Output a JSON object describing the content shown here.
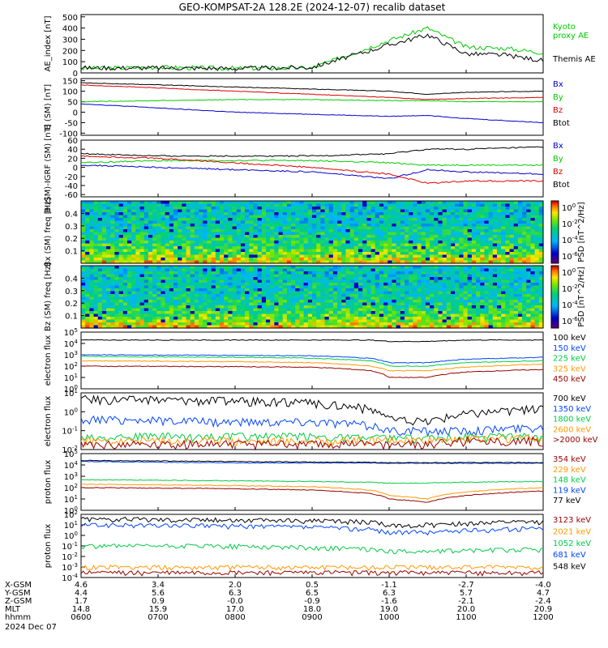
{
  "title": "GEO-KOMPSAT-2A 128.2E (2024-12-07) recalib dataset",
  "date_label": "2024 Dec 07",
  "colors": {
    "black": "#000000",
    "green": "#00cc00",
    "red": "#dd0000",
    "blue": "#0000cc",
    "darkred": "#990000",
    "orange": "#ff9900",
    "blue2": "#0044ff",
    "green2": "#00cc44"
  },
  "ephemeris": {
    "rows": [
      {
        "label": "X-GSM",
        "values": [
          "4.6",
          "3.4",
          "2.0",
          "0.5",
          "-1.1",
          "-2.7",
          "-4.0"
        ]
      },
      {
        "label": "Y-GSM",
        "values": [
          "4.4",
          "5.6",
          "6.3",
          "6.5",
          "6.3",
          "5.7",
          "4.7"
        ]
      },
      {
        "label": "Z-GSM",
        "values": [
          "1.7",
          "0.9",
          "-0.0",
          "-0.9",
          "-1.6",
          "-2.1",
          "-2.4"
        ]
      },
      {
        "label": "MLT",
        "values": [
          "14.8",
          "15.9",
          "17.0",
          "18.0",
          "19.0",
          "20.0",
          "20.9"
        ]
      },
      {
        "label": "hhmm",
        "values": [
          "0600",
          "0700",
          "0800",
          "0900",
          "1000",
          "1100",
          "1200"
        ]
      }
    ]
  },
  "chart_data": [
    {
      "type": "line",
      "id": "ae",
      "ylabel": "AE_index [nT]",
      "ylim": [
        0,
        520
      ],
      "yticks": [
        "0",
        "100",
        "200",
        "300",
        "400",
        "500"
      ],
      "x": [
        "06:00",
        "07:00",
        "08:00",
        "09:00",
        "10:00",
        "10:30",
        "11:00",
        "11:30",
        "12:00"
      ],
      "series": [
        {
          "name": "Kyoto proxy AE",
          "color": "#00cc00",
          "values": [
            40,
            50,
            40,
            45,
            290,
            400,
            230,
            220,
            180
          ]
        },
        {
          "name": "Themis AE",
          "color": "#000000",
          "values": [
            45,
            45,
            40,
            50,
            250,
            340,
            170,
            160,
            110
          ]
        }
      ]
    },
    {
      "type": "line",
      "id": "bsm",
      "ylabel": "B (SM) [nT]",
      "ylim": [
        -110,
        160
      ],
      "yticks": [
        "-100",
        "-50",
        "0",
        "50",
        "100",
        "150"
      ],
      "x": [
        "06:00",
        "07:00",
        "08:00",
        "09:00",
        "10:00",
        "10:30",
        "11:00",
        "12:00"
      ],
      "series": [
        {
          "name": "Bx",
          "color": "#0000cc",
          "values": [
            40,
            20,
            0,
            -10,
            -20,
            -15,
            -30,
            -50
          ]
        },
        {
          "name": "By",
          "color": "#00cc00",
          "values": [
            50,
            55,
            60,
            60,
            55,
            55,
            50,
            50
          ]
        },
        {
          "name": "Bz",
          "color": "#dd0000",
          "values": [
            130,
            115,
            100,
            85,
            70,
            60,
            65,
            70
          ]
        },
        {
          "name": "Btot",
          "color": "#000000",
          "values": [
            140,
            130,
            120,
            110,
            100,
            85,
            95,
            100
          ]
        }
      ]
    },
    {
      "type": "line",
      "id": "bdiff",
      "ylabel": "B (SM)-IGRF (SM) [nT]",
      "ylim": [
        -65,
        60
      ],
      "yticks": [
        "-60",
        "-40",
        "-20",
        "0",
        "20",
        "40",
        "60"
      ],
      "x": [
        "06:00",
        "07:00",
        "08:00",
        "09:00",
        "10:00",
        "10:30",
        "11:00",
        "12:00"
      ],
      "series": [
        {
          "name": "Bx",
          "color": "#0000cc",
          "values": [
            5,
            0,
            -5,
            -10,
            -25,
            -5,
            -10,
            -15
          ]
        },
        {
          "name": "By",
          "color": "#00cc00",
          "values": [
            10,
            15,
            15,
            15,
            10,
            5,
            5,
            5
          ]
        },
        {
          "name": "Bz",
          "color": "#dd0000",
          "values": [
            25,
            20,
            10,
            0,
            -15,
            -35,
            -30,
            -30
          ]
        },
        {
          "name": "Btot",
          "color": "#000000",
          "values": [
            30,
            25,
            25,
            25,
            30,
            40,
            40,
            45
          ]
        }
      ]
    },
    {
      "type": "heatmap",
      "id": "bxpsd",
      "ylabel": "Bx (SM) freq [Hz]",
      "ylim": [
        0.05,
        0.5
      ],
      "yticks": [
        "0.1",
        "0.2",
        "0.3",
        "0.4"
      ],
      "colorbar": {
        "label": "PSD [nT^2/Hz]",
        "ticks": [
          "10^0",
          "10^-2",
          "10^-4",
          "10^-6"
        ]
      }
    },
    {
      "type": "heatmap",
      "id": "bzpsd",
      "ylabel": "Bz (SM) freq [Hz]",
      "ylim": [
        0.05,
        0.5
      ],
      "yticks": [
        "0.1",
        "0.2",
        "0.3",
        "0.4"
      ],
      "colorbar": {
        "label": "PSD [nT^2/Hz]",
        "ticks": [
          "10^0",
          "10^-2",
          "10^-4",
          "10^-6"
        ]
      }
    },
    {
      "type": "line",
      "id": "elec1",
      "ylabel": "electron flux",
      "log": true,
      "ylim": [
        0,
        5
      ],
      "yticks": [
        "10^0",
        "10^1",
        "10^2",
        "10^3",
        "10^4",
        "10^5"
      ],
      "x": [
        "06:00",
        "08:00",
        "09:00",
        "09:45",
        "10:00",
        "10:30",
        "11:00",
        "12:00"
      ],
      "series": [
        {
          "name": "100 keV",
          "color": "#000000",
          "values": [
            20000,
            20000,
            20000,
            20000,
            15000,
            15000,
            20000,
            20000
          ]
        },
        {
          "name": "150 keV",
          "color": "#0044ff",
          "values": [
            1000,
            900,
            800,
            500,
            200,
            200,
            400,
            600
          ]
        },
        {
          "name": "225 keV",
          "color": "#00cc44",
          "values": [
            700,
            600,
            500,
            300,
            100,
            100,
            200,
            300
          ]
        },
        {
          "name": "325 keV",
          "color": "#ff9900",
          "values": [
            300,
            250,
            200,
            100,
            40,
            40,
            80,
            150
          ]
        },
        {
          "name": "450 keV",
          "color": "#990000",
          "values": [
            100,
            90,
            80,
            40,
            10,
            10,
            30,
            50
          ]
        }
      ]
    },
    {
      "type": "line",
      "id": "elec2",
      "ylabel": "electron flux",
      "log": true,
      "ylim": [
        -2,
        1
      ],
      "yticks": [
        "10^-2",
        "10^-1",
        "10^0",
        "10^1"
      ],
      "x": [
        "06:00",
        "08:00",
        "09:00",
        "09:45",
        "10:00",
        "10:30",
        "11:00",
        "12:00"
      ],
      "series": [
        {
          "name": "700 keV",
          "color": "#000000",
          "values": [
            5,
            4,
            3,
            1.5,
            0.4,
            0.3,
            0.8,
            1.5
          ]
        },
        {
          "name": "1350 keV",
          "color": "#0044ff",
          "values": [
            0.4,
            0.3,
            0.3,
            0.2,
            0.1,
            0.1,
            0.1,
            0.15
          ]
        },
        {
          "name": "1800 keV",
          "color": "#00cc44",
          "values": [
            0.05,
            0.05,
            0.05,
            0.04,
            0.04,
            0.04,
            0.05,
            0.05
          ]
        },
        {
          "name": "2600 keV",
          "color": "#ff9900",
          "values": [
            0.03,
            0.03,
            0.03,
            0.03,
            0.03,
            0.03,
            0.04,
            0.04
          ]
        },
        {
          "name": ">2000 keV",
          "color": "#990000",
          "values": [
            0.02,
            0.02,
            0.02,
            0.02,
            0.02,
            0.02,
            0.03,
            0.03
          ]
        }
      ]
    },
    {
      "type": "line",
      "id": "prot1",
      "ylabel": "proton flux",
      "log": true,
      "ylim": [
        0,
        5
      ],
      "yticks": [
        "10^0",
        "10^1",
        "10^2",
        "10^3",
        "10^4",
        "10^5"
      ],
      "x": [
        "06:00",
        "08:00",
        "09:00",
        "09:45",
        "10:00",
        "10:30",
        "11:00",
        "12:00"
      ],
      "series": [
        {
          "name": "354 keV",
          "color": "#990000",
          "values": [
            100,
            80,
            60,
            30,
            10,
            5,
            20,
            50
          ]
        },
        {
          "name": "229 keV",
          "color": "#ff9900",
          "values": [
            200,
            150,
            120,
            60,
            20,
            10,
            40,
            100
          ]
        },
        {
          "name": "148 keV",
          "color": "#00cc44",
          "values": [
            500,
            400,
            350,
            300,
            250,
            250,
            300,
            350
          ]
        },
        {
          "name": "119 keV",
          "color": "#0044ff",
          "values": [
            20000,
            15000,
            15000,
            15000,
            14000,
            14000,
            14000,
            14000
          ]
        },
        {
          "name": "77 keV",
          "color": "#000000",
          "values": [
            25000,
            20000,
            18000,
            17000,
            16000,
            16000,
            16000,
            16000
          ]
        }
      ]
    },
    {
      "type": "line",
      "id": "prot2",
      "ylabel": "proton flux",
      "log": true,
      "ylim": [
        -4,
        2
      ],
      "yticks": [
        "10^-4",
        "10^-3",
        "10^-2",
        "10^-1",
        "10^0",
        "10^1",
        "10^2"
      ],
      "x": [
        "06:00",
        "08:00",
        "09:00",
        "09:45",
        "10:00",
        "10:30",
        "11:00",
        "12:00"
      ],
      "series": [
        {
          "name": "3123 keV",
          "color": "#990000",
          "values": [
            0.0003,
            0.0003,
            0.0003,
            0.0003,
            0.0003,
            0.0003,
            0.0003,
            0.0003
          ]
        },
        {
          "name": "2021 keV",
          "color": "#ff9900",
          "values": [
            0.001,
            0.001,
            0.001,
            0.001,
            0.001,
            0.001,
            0.001,
            0.001
          ]
        },
        {
          "name": "1052 keV",
          "color": "#00cc44",
          "values": [
            0.1,
            0.1,
            0.07,
            0.05,
            0.03,
            0.03,
            0.04,
            0.05
          ]
        },
        {
          "name": "681 keV",
          "color": "#0044ff",
          "values": [
            10,
            8,
            6,
            4,
            2,
            2,
            3,
            5
          ]
        },
        {
          "name": "548 keV",
          "color": "#000000",
          "values": [
            40,
            30,
            25,
            20,
            8,
            10,
            15,
            20
          ]
        }
      ]
    }
  ]
}
